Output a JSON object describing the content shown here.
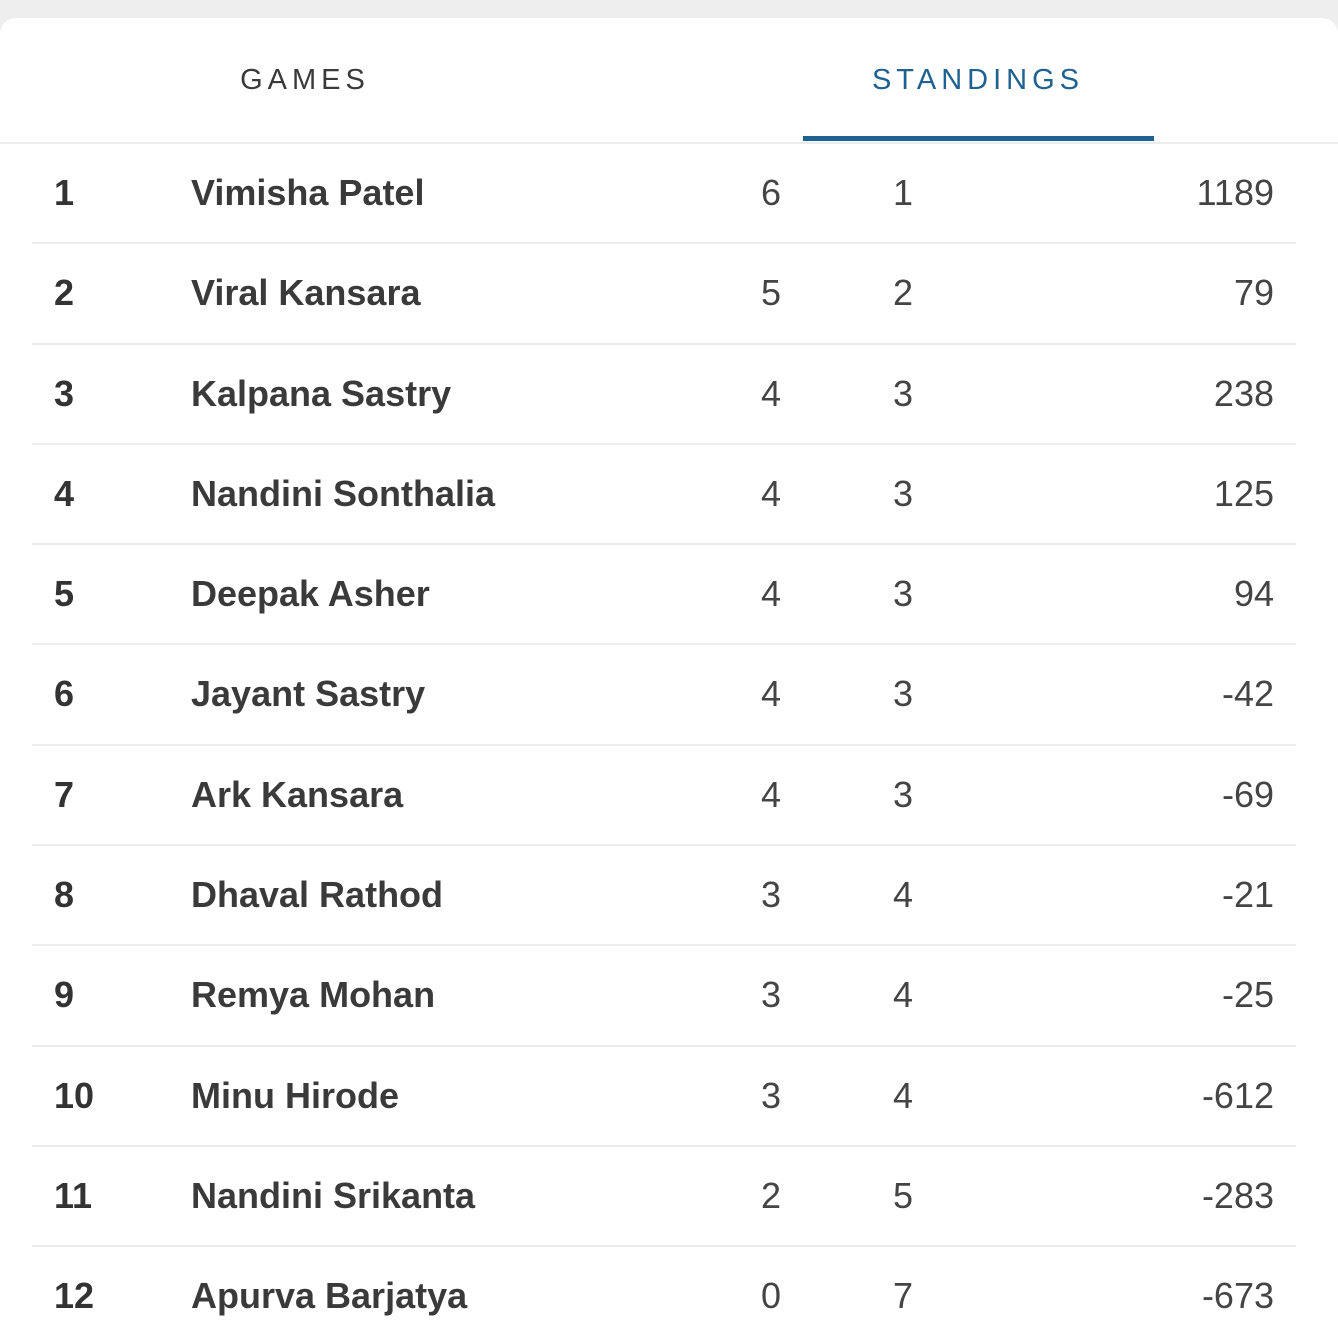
{
  "tabs": {
    "games_label": "GAMES",
    "standings_label": "STANDINGS",
    "active": "standings",
    "active_color": "#1f6190"
  },
  "standings": [
    {
      "rank": "1",
      "name": "Vimisha Patel",
      "wins": "6",
      "losses": "1",
      "points": "1189"
    },
    {
      "rank": "2",
      "name": "Viral Kansara",
      "wins": "5",
      "losses": "2",
      "points": "79"
    },
    {
      "rank": "3",
      "name": "Kalpana Sastry",
      "wins": "4",
      "losses": "3",
      "points": "238"
    },
    {
      "rank": "4",
      "name": "Nandini Sonthalia",
      "wins": "4",
      "losses": "3",
      "points": "125"
    },
    {
      "rank": "5",
      "name": "Deepak Asher",
      "wins": "4",
      "losses": "3",
      "points": "94"
    },
    {
      "rank": "6",
      "name": "Jayant Sastry",
      "wins": "4",
      "losses": "3",
      "points": "-42"
    },
    {
      "rank": "7",
      "name": "Ark Kansara",
      "wins": "4",
      "losses": "3",
      "points": "-69"
    },
    {
      "rank": "8",
      "name": "Dhaval Rathod",
      "wins": "3",
      "losses": "4",
      "points": "-21"
    },
    {
      "rank": "9",
      "name": "Remya Mohan",
      "wins": "3",
      "losses": "4",
      "points": "-25"
    },
    {
      "rank": "10",
      "name": "Minu Hirode",
      "wins": "3",
      "losses": "4",
      "points": "-612"
    },
    {
      "rank": "11",
      "name": "Nandini Srikanta",
      "wins": "2",
      "losses": "5",
      "points": "-283"
    },
    {
      "rank": "12",
      "name": "Apurva Barjatya",
      "wins": "0",
      "losses": "7",
      "points": "-673"
    }
  ]
}
